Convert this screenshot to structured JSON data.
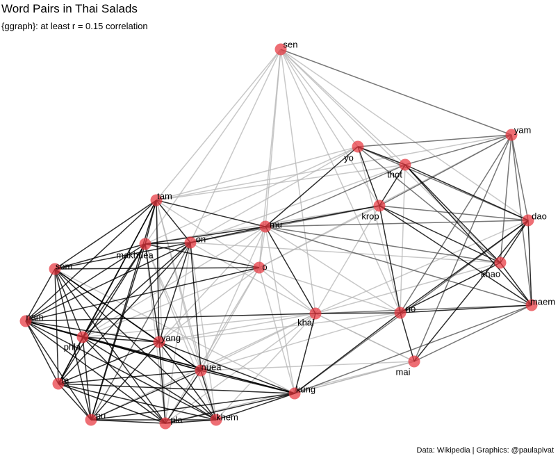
{
  "title": "Word Pairs in Thai Salads",
  "subtitle": "{ggraph}: at least r = 0.15 correlation",
  "caption": "Data: Wikipedia | Graphics: @paulapivat",
  "colors": {
    "node": "#e8363e",
    "strong_edge": "#000000",
    "medium_edge": "#555555",
    "weak_edge": "#b5b5b5",
    "background": "#ffffff"
  },
  "nodes": [
    {
      "id": "sen",
      "label": "sen"
    },
    {
      "id": "yam",
      "label": "yam"
    },
    {
      "id": "yo",
      "label": "yo"
    },
    {
      "id": "thot",
      "label": "thot"
    },
    {
      "id": "krop",
      "label": "krop"
    },
    {
      "id": "dao",
      "label": "dao"
    },
    {
      "id": "tam",
      "label": "tam"
    },
    {
      "id": "mu",
      "label": "mu"
    },
    {
      "id": "on",
      "label": "on"
    },
    {
      "id": "makhuea",
      "label": "makhuea"
    },
    {
      "id": "o",
      "label": "o"
    },
    {
      "id": "khao",
      "label": "khao"
    },
    {
      "id": "som",
      "label": "som"
    },
    {
      "id": "maem",
      "label": "maem"
    },
    {
      "id": "nam",
      "label": "nam"
    },
    {
      "id": "khai",
      "label": "khai"
    },
    {
      "id": "no",
      "label": "no"
    },
    {
      "id": "phla",
      "label": "phla"
    },
    {
      "id": "yang",
      "label": "yang"
    },
    {
      "id": "mai",
      "label": "mai"
    },
    {
      "id": "nuea",
      "label": "nuea"
    },
    {
      "id": "ta",
      "label": "ta"
    },
    {
      "id": "kung",
      "label": "kung"
    },
    {
      "id": "pu",
      "label": "pu"
    },
    {
      "id": "pla",
      "label": "pla"
    },
    {
      "id": "khem",
      "label": "khem"
    }
  ],
  "edges": [
    {
      "from": "sen",
      "to": "yam",
      "w": 2
    },
    {
      "from": "sen",
      "to": "yo",
      "w": 1
    },
    {
      "from": "sen",
      "to": "thot",
      "w": 1
    },
    {
      "from": "sen",
      "to": "krop",
      "w": 1
    },
    {
      "from": "sen",
      "to": "tam",
      "w": 1
    },
    {
      "from": "sen",
      "to": "mu",
      "w": 1
    },
    {
      "from": "sen",
      "to": "on",
      "w": 1
    },
    {
      "from": "sen",
      "to": "makhuea",
      "w": 1
    },
    {
      "from": "sen",
      "to": "khai",
      "w": 1
    },
    {
      "from": "sen",
      "to": "no",
      "w": 1
    },
    {
      "from": "sen",
      "to": "dao",
      "w": 1
    },
    {
      "from": "sen",
      "to": "khao",
      "w": 1
    },
    {
      "from": "sen",
      "to": "o",
      "w": 1
    },
    {
      "from": "yam",
      "to": "yo",
      "w": 2
    },
    {
      "from": "yam",
      "to": "thot",
      "w": 2
    },
    {
      "from": "yam",
      "to": "krop",
      "w": 2
    },
    {
      "from": "yam",
      "to": "dao",
      "w": 2
    },
    {
      "from": "yam",
      "to": "khao",
      "w": 2
    },
    {
      "from": "yam",
      "to": "maem",
      "w": 2
    },
    {
      "from": "yam",
      "to": "no",
      "w": 2
    },
    {
      "from": "yam",
      "to": "mai",
      "w": 2
    },
    {
      "from": "yam",
      "to": "o",
      "w": 1
    },
    {
      "from": "yam",
      "to": "tam",
      "w": 1
    },
    {
      "from": "yo",
      "to": "thot",
      "w": 3
    },
    {
      "from": "yo",
      "to": "krop",
      "w": 3
    },
    {
      "from": "yo",
      "to": "mu",
      "w": 3
    },
    {
      "from": "yo",
      "to": "dao",
      "w": 2
    },
    {
      "from": "yo",
      "to": "khao",
      "w": 2
    },
    {
      "from": "yo",
      "to": "makhuea",
      "w": 1
    },
    {
      "from": "yo",
      "to": "on",
      "w": 1
    },
    {
      "from": "yo",
      "to": "no",
      "w": 1
    },
    {
      "from": "yo",
      "to": "tam",
      "w": 1
    },
    {
      "from": "thot",
      "to": "krop",
      "w": 3
    },
    {
      "from": "thot",
      "to": "dao",
      "w": 3
    },
    {
      "from": "thot",
      "to": "khao",
      "w": 3
    },
    {
      "from": "thot",
      "to": "maem",
      "w": 3
    },
    {
      "from": "thot",
      "to": "mu",
      "w": 2
    },
    {
      "from": "thot",
      "to": "no",
      "w": 1
    },
    {
      "from": "thot",
      "to": "tam",
      "w": 1
    },
    {
      "from": "thot",
      "to": "on",
      "w": 1
    },
    {
      "from": "krop",
      "to": "khao",
      "w": 3
    },
    {
      "from": "krop",
      "to": "maem",
      "w": 3
    },
    {
      "from": "krop",
      "to": "no",
      "w": 3
    },
    {
      "from": "krop",
      "to": "mu",
      "w": 3
    },
    {
      "from": "krop",
      "to": "dao",
      "w": 2
    },
    {
      "from": "krop",
      "to": "on",
      "w": 2
    },
    {
      "from": "krop",
      "to": "makhuea",
      "w": 1
    },
    {
      "from": "krop",
      "to": "khai",
      "w": 1
    },
    {
      "from": "krop",
      "to": "o",
      "w": 1
    },
    {
      "from": "dao",
      "to": "khao",
      "w": 3
    },
    {
      "from": "dao",
      "to": "maem",
      "w": 3
    },
    {
      "from": "dao",
      "to": "no",
      "w": 3
    },
    {
      "from": "dao",
      "to": "mai",
      "w": 3
    },
    {
      "from": "dao",
      "to": "mu",
      "w": 2
    },
    {
      "from": "dao",
      "to": "khai",
      "w": 1
    },
    {
      "from": "dao",
      "to": "kung",
      "w": 2
    },
    {
      "from": "khao",
      "to": "maem",
      "w": 3
    },
    {
      "from": "khao",
      "to": "no",
      "w": 3
    },
    {
      "from": "khao",
      "to": "mu",
      "w": 2
    },
    {
      "from": "khao",
      "to": "khai",
      "w": 1
    },
    {
      "from": "khao",
      "to": "on",
      "w": 1
    },
    {
      "from": "maem",
      "to": "no",
      "w": 3
    },
    {
      "from": "maem",
      "to": "khai",
      "w": 2
    },
    {
      "from": "maem",
      "to": "mu",
      "w": 2
    },
    {
      "from": "maem",
      "to": "mai",
      "w": 2
    },
    {
      "from": "maem",
      "to": "kung",
      "w": 2
    },
    {
      "from": "no",
      "to": "mai",
      "w": 3
    },
    {
      "from": "no",
      "to": "khai",
      "w": 3
    },
    {
      "from": "no",
      "to": "kung",
      "w": 3
    },
    {
      "from": "no",
      "to": "o",
      "w": 1
    },
    {
      "from": "no",
      "to": "nuea",
      "w": 1
    },
    {
      "from": "no",
      "to": "yang",
      "w": 1
    },
    {
      "from": "mai",
      "to": "kung",
      "w": 1
    },
    {
      "from": "mai",
      "to": "pla",
      "w": 1
    },
    {
      "from": "mai",
      "to": "khai",
      "w": 1
    },
    {
      "from": "tam",
      "to": "mu",
      "w": 3
    },
    {
      "from": "tam",
      "to": "on",
      "w": 3
    },
    {
      "from": "tam",
      "to": "makhuea",
      "w": 3
    },
    {
      "from": "tam",
      "to": "som",
      "w": 3
    },
    {
      "from": "tam",
      "to": "nam",
      "w": 3
    },
    {
      "from": "tam",
      "to": "phla",
      "w": 3
    },
    {
      "from": "tam",
      "to": "yang",
      "w": 3
    },
    {
      "from": "tam",
      "to": "ta",
      "w": 3
    },
    {
      "from": "tam",
      "to": "pu",
      "w": 3
    },
    {
      "from": "tam",
      "to": "pla",
      "w": 1
    },
    {
      "from": "tam",
      "to": "khem",
      "w": 1
    },
    {
      "from": "tam",
      "to": "nuea",
      "w": 1
    },
    {
      "from": "tam",
      "to": "o",
      "w": 1
    },
    {
      "from": "mu",
      "to": "on",
      "w": 3
    },
    {
      "from": "mu",
      "to": "makhuea",
      "w": 3
    },
    {
      "from": "mu",
      "to": "khai",
      "w": 3
    },
    {
      "from": "mu",
      "to": "o",
      "w": 1
    },
    {
      "from": "mu",
      "to": "kung",
      "w": 1
    },
    {
      "from": "mu",
      "to": "nuea",
      "w": 1
    },
    {
      "from": "mu",
      "to": "yang",
      "w": 1
    },
    {
      "from": "mu",
      "to": "phla",
      "w": 1
    },
    {
      "from": "mu",
      "to": "no",
      "w": 1
    },
    {
      "from": "on",
      "to": "makhuea",
      "w": 3
    },
    {
      "from": "on",
      "to": "som",
      "w": 3
    },
    {
      "from": "on",
      "to": "nam",
      "w": 3
    },
    {
      "from": "on",
      "to": "phla",
      "w": 3
    },
    {
      "from": "on",
      "to": "yang",
      "w": 3
    },
    {
      "from": "on",
      "to": "ta",
      "w": 3
    },
    {
      "from": "on",
      "to": "nuea",
      "w": 3
    },
    {
      "from": "on",
      "to": "pu",
      "w": 2
    },
    {
      "from": "on",
      "to": "pla",
      "w": 1
    },
    {
      "from": "on",
      "to": "khem",
      "w": 1
    },
    {
      "from": "on",
      "to": "khai",
      "w": 1
    },
    {
      "from": "makhuea",
      "to": "som",
      "w": 3
    },
    {
      "from": "makhuea",
      "to": "nam",
      "w": 3
    },
    {
      "from": "makhuea",
      "to": "phla",
      "w": 3
    },
    {
      "from": "makhuea",
      "to": "yang",
      "w": 3
    },
    {
      "from": "makhuea",
      "to": "ta",
      "w": 3
    },
    {
      "from": "makhuea",
      "to": "pu",
      "w": 3
    },
    {
      "from": "makhuea",
      "to": "pla",
      "w": 1
    },
    {
      "from": "makhuea",
      "to": "khem",
      "w": 1
    },
    {
      "from": "makhuea",
      "to": "nuea",
      "w": 1
    },
    {
      "from": "makhuea",
      "to": "o",
      "w": 3
    },
    {
      "from": "o",
      "to": "som",
      "w": 3
    },
    {
      "from": "o",
      "to": "nam",
      "w": 3
    },
    {
      "from": "o",
      "to": "phla",
      "w": 1
    },
    {
      "from": "o",
      "to": "yang",
      "w": 1
    },
    {
      "from": "o",
      "to": "nuea",
      "w": 1
    },
    {
      "from": "o",
      "to": "kung",
      "w": 1
    },
    {
      "from": "o",
      "to": "khai",
      "w": 1
    },
    {
      "from": "o",
      "to": "pla",
      "w": 1
    },
    {
      "from": "som",
      "to": "nam",
      "w": 3
    },
    {
      "from": "som",
      "to": "phla",
      "w": 3
    },
    {
      "from": "som",
      "to": "yang",
      "w": 3
    },
    {
      "from": "som",
      "to": "nuea",
      "w": 3
    },
    {
      "from": "som",
      "to": "ta",
      "w": 3
    },
    {
      "from": "som",
      "to": "pu",
      "w": 3
    },
    {
      "from": "som",
      "to": "pla",
      "w": 3
    },
    {
      "from": "som",
      "to": "khem",
      "w": 3
    },
    {
      "from": "som",
      "to": "kung",
      "w": 1
    },
    {
      "from": "nam",
      "to": "phla",
      "w": 3
    },
    {
      "from": "nam",
      "to": "yang",
      "w": 3
    },
    {
      "from": "nam",
      "to": "nuea",
      "w": 3
    },
    {
      "from": "nam",
      "to": "ta",
      "w": 3
    },
    {
      "from": "nam",
      "to": "pu",
      "w": 3
    },
    {
      "from": "nam",
      "to": "pla",
      "w": 3
    },
    {
      "from": "nam",
      "to": "khem",
      "w": 3
    },
    {
      "from": "nam",
      "to": "kung",
      "w": 3
    },
    {
      "from": "nam",
      "to": "khai",
      "w": 3
    },
    {
      "from": "phla",
      "to": "yang",
      "w": 3
    },
    {
      "from": "phla",
      "to": "nuea",
      "w": 3
    },
    {
      "from": "phla",
      "to": "ta",
      "w": 3
    },
    {
      "from": "phla",
      "to": "pu",
      "w": 3
    },
    {
      "from": "phla",
      "to": "pla",
      "w": 3
    },
    {
      "from": "phla",
      "to": "khem",
      "w": 3
    },
    {
      "from": "phla",
      "to": "kung",
      "w": 3
    },
    {
      "from": "phla",
      "to": "khai",
      "w": 1
    },
    {
      "from": "yang",
      "to": "nuea",
      "w": 3
    },
    {
      "from": "yang",
      "to": "ta",
      "w": 3
    },
    {
      "from": "yang",
      "to": "pu",
      "w": 3
    },
    {
      "from": "yang",
      "to": "pla",
      "w": 3
    },
    {
      "from": "yang",
      "to": "khem",
      "w": 3
    },
    {
      "from": "yang",
      "to": "kung",
      "w": 3
    },
    {
      "from": "yang",
      "to": "khai",
      "w": 1
    },
    {
      "from": "nuea",
      "to": "ta",
      "w": 3
    },
    {
      "from": "nuea",
      "to": "pu",
      "w": 3
    },
    {
      "from": "nuea",
      "to": "pla",
      "w": 3
    },
    {
      "from": "nuea",
      "to": "khem",
      "w": 3
    },
    {
      "from": "nuea",
      "to": "kung",
      "w": 3
    },
    {
      "from": "nuea",
      "to": "khai",
      "w": 1
    },
    {
      "from": "nuea",
      "to": "mai",
      "w": 1
    },
    {
      "from": "ta",
      "to": "pu",
      "w": 3
    },
    {
      "from": "ta",
      "to": "pla",
      "w": 3
    },
    {
      "from": "ta",
      "to": "khem",
      "w": 3
    },
    {
      "from": "ta",
      "to": "kung",
      "w": 3
    },
    {
      "from": "pu",
      "to": "pla",
      "w": 3
    },
    {
      "from": "pu",
      "to": "khem",
      "w": 3
    },
    {
      "from": "pu",
      "to": "kung",
      "w": 3
    },
    {
      "from": "pla",
      "to": "khem",
      "w": 3
    },
    {
      "from": "pla",
      "to": "kung",
      "w": 3
    },
    {
      "from": "khem",
      "to": "kung",
      "w": 3
    },
    {
      "from": "khem",
      "to": "khai",
      "w": 1
    },
    {
      "from": "kung",
      "to": "khai",
      "w": 3
    },
    {
      "from": "kung",
      "to": "mai",
      "w": 1
    },
    {
      "from": "khai",
      "to": "mai",
      "w": 1
    },
    {
      "from": "khai",
      "to": "pla",
      "w": 1
    },
    {
      "from": "khai",
      "to": "pu",
      "w": 1
    }
  ]
}
